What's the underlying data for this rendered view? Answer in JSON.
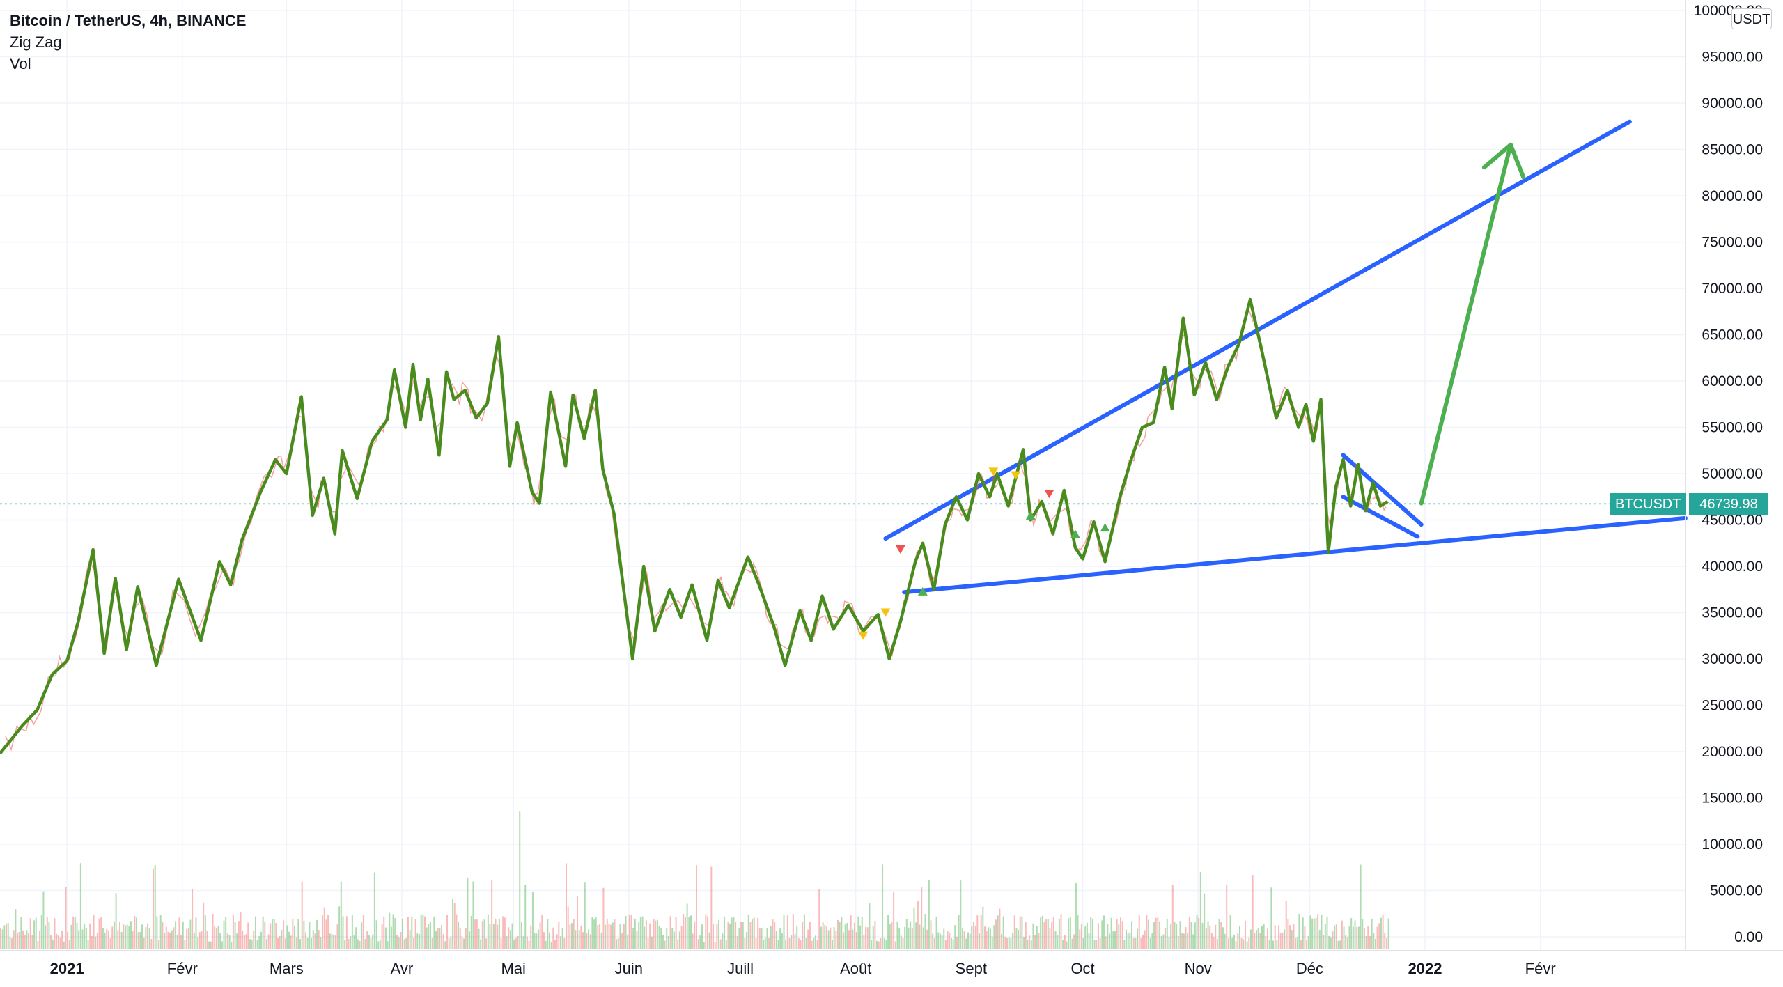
{
  "legend": {
    "title": "Bitcoin / TetherUS, 4h, BINANCE",
    "indicator1": "Zig Zag",
    "indicator2": "Vol"
  },
  "currency_button": "USDT",
  "last_price": {
    "symbol": "BTCUSDT",
    "value": "46739.98",
    "price": 46739.98
  },
  "colors": {
    "zigzag": "#4a8b1e",
    "trendline": "#2962ff",
    "projection_arrow": "#4caf50",
    "last_price": "#26a69a",
    "grid": "#f0f3fa",
    "up_marker": "#4caf50",
    "down_marker": "#ef5350",
    "yellow_marker": "#f2c40f"
  },
  "chart_data": {
    "type": "line",
    "x_axis": {
      "tick_labels": [
        "2021",
        "Févr",
        "Mars",
        "Avr",
        "Mai",
        "Juin",
        "Juill",
        "Août",
        "Sept",
        "Oct",
        "Nov",
        "Déc",
        "2022",
        "Févr"
      ],
      "tick_positions_days": [
        0,
        31,
        59,
        90,
        120,
        151,
        181,
        212,
        243,
        273,
        304,
        334,
        365,
        396
      ],
      "range_days": [
        -18,
        435
      ]
    },
    "y_axis": {
      "ylim": [
        0,
        100000
      ],
      "tick_labels": [
        "0.00",
        "5000.00",
        "10000.00",
        "15000.00",
        "20000.00",
        "25000.00",
        "30000.00",
        "35000.00",
        "40000.00",
        "45000.00",
        "50000.00",
        "55000.00",
        "60000.00",
        "65000.00",
        "70000.00",
        "75000.00",
        "80000.00",
        "85000.00",
        "90000.00",
        "95000.00",
        "100000.00"
      ]
    },
    "grid": true,
    "series": [
      {
        "kind": "price_zigzag",
        "points": [
          [
            -18,
            19800
          ],
          [
            -12,
            22800
          ],
          [
            -8,
            24500
          ],
          [
            -4,
            28300
          ],
          [
            0,
            29800
          ],
          [
            3,
            34000
          ],
          [
            7,
            41800
          ],
          [
            10,
            30600
          ],
          [
            13,
            38700
          ],
          [
            16,
            31000
          ],
          [
            19,
            37800
          ],
          [
            24,
            29300
          ],
          [
            30,
            38600
          ],
          [
            36,
            32000
          ],
          [
            41,
            40500
          ],
          [
            44,
            38000
          ],
          [
            47,
            42800
          ],
          [
            52,
            48000
          ],
          [
            56,
            51500
          ],
          [
            59,
            50000
          ],
          [
            63,
            58300
          ],
          [
            66,
            45500
          ],
          [
            69,
            49500
          ],
          [
            72,
            43500
          ],
          [
            74,
            52500
          ],
          [
            78,
            47300
          ],
          [
            82,
            53500
          ],
          [
            86,
            55800
          ],
          [
            88,
            61200
          ],
          [
            91,
            55000
          ],
          [
            93,
            61800
          ],
          [
            95,
            55800
          ],
          [
            97,
            60200
          ],
          [
            100,
            52000
          ],
          [
            102,
            61000
          ],
          [
            104,
            58000
          ],
          [
            107,
            59000
          ],
          [
            110,
            56000
          ],
          [
            113,
            57600
          ],
          [
            116,
            64800
          ],
          [
            119,
            50800
          ],
          [
            121,
            55500
          ],
          [
            125,
            48000
          ],
          [
            127,
            46800
          ],
          [
            130,
            58800
          ],
          [
            134,
            50800
          ],
          [
            136,
            58500
          ],
          [
            139,
            53800
          ],
          [
            142,
            59000
          ],
          [
            144,
            50500
          ],
          [
            147,
            45700
          ],
          [
            152,
            30000
          ],
          [
            155,
            40000
          ],
          [
            158,
            33000
          ],
          [
            162,
            37500
          ],
          [
            165,
            34500
          ],
          [
            168,
            38000
          ],
          [
            172,
            32000
          ],
          [
            175,
            38500
          ],
          [
            178,
            35500
          ],
          [
            183,
            41000
          ],
          [
            186,
            38000
          ],
          [
            190,
            33500
          ],
          [
            193,
            29300
          ],
          [
            197,
            35200
          ],
          [
            200,
            32000
          ],
          [
            203,
            36800
          ],
          [
            206,
            33200
          ],
          [
            210,
            35800
          ],
          [
            214,
            33000
          ],
          [
            218,
            34800
          ],
          [
            221,
            30000
          ],
          [
            224,
            34000
          ],
          [
            228,
            40500
          ],
          [
            230,
            42500
          ],
          [
            233,
            37500
          ],
          [
            236,
            44500
          ],
          [
            239,
            47500
          ],
          [
            242,
            45000
          ],
          [
            245,
            50000
          ],
          [
            248,
            47500
          ],
          [
            250,
            50000
          ],
          [
            253,
            46500
          ],
          [
            257,
            52600
          ],
          [
            259,
            45000
          ],
          [
            262,
            47000
          ],
          [
            265,
            43500
          ],
          [
            268,
            48200
          ],
          [
            271,
            42000
          ],
          [
            273,
            40800
          ],
          [
            276,
            44800
          ],
          [
            279,
            40500
          ],
          [
            283,
            47500
          ],
          [
            286,
            51500
          ],
          [
            289,
            55000
          ],
          [
            292,
            55500
          ],
          [
            295,
            61500
          ],
          [
            297,
            57000
          ],
          [
            300,
            66800
          ],
          [
            303,
            58500
          ],
          [
            306,
            62000
          ],
          [
            309,
            58000
          ],
          [
            312,
            61500
          ],
          [
            315,
            64000
          ],
          [
            318,
            68800
          ],
          [
            321,
            63500
          ],
          [
            325,
            56000
          ],
          [
            328,
            59000
          ],
          [
            331,
            55000
          ],
          [
            333,
            57500
          ],
          [
            335,
            53500
          ],
          [
            337,
            58000
          ],
          [
            339,
            41500
          ],
          [
            341,
            48500
          ],
          [
            343,
            51500
          ],
          [
            345,
            46500
          ],
          [
            347,
            51000
          ],
          [
            349,
            46000
          ],
          [
            351,
            49000
          ],
          [
            353,
            46500
          ],
          [
            355,
            47000
          ]
        ]
      }
    ],
    "volume_bars_note": "",
    "trendlines": [
      {
        "from": [
          220,
          43000
        ],
        "to": [
          420,
          88000
        ]
      },
      {
        "from": [
          225,
          37200
        ],
        "to": [
          435,
          45200
        ]
      },
      {
        "from": [
          343,
          52000
        ],
        "to": [
          364,
          44500
        ]
      },
      {
        "from": [
          343,
          47500
        ],
        "to": [
          363,
          43200
        ]
      }
    ],
    "projection_arrow": {
      "from": [
        364,
        46800
      ],
      "to": [
        388,
        85500
      ]
    },
    "markers": [
      {
        "x": 224,
        "y": 41800,
        "type": "down",
        "color": "red"
      },
      {
        "x": 214,
        "y": 32500,
        "type": "down",
        "color": "yellow"
      },
      {
        "x": 220,
        "y": 35000,
        "type": "down",
        "color": "yellow"
      },
      {
        "x": 230,
        "y": 37300,
        "type": "up",
        "color": "green"
      },
      {
        "x": 249,
        "y": 50200,
        "type": "down",
        "color": "yellow"
      },
      {
        "x": 255,
        "y": 49800,
        "type": "down",
        "color": "yellow"
      },
      {
        "x": 259,
        "y": 45500,
        "type": "up",
        "color": "green"
      },
      {
        "x": 264,
        "y": 47800,
        "type": "down",
        "color": "red"
      },
      {
        "x": 271,
        "y": 43500,
        "type": "up",
        "color": "green"
      },
      {
        "x": 279,
        "y": 44200,
        "type": "up",
        "color": "green"
      }
    ]
  }
}
